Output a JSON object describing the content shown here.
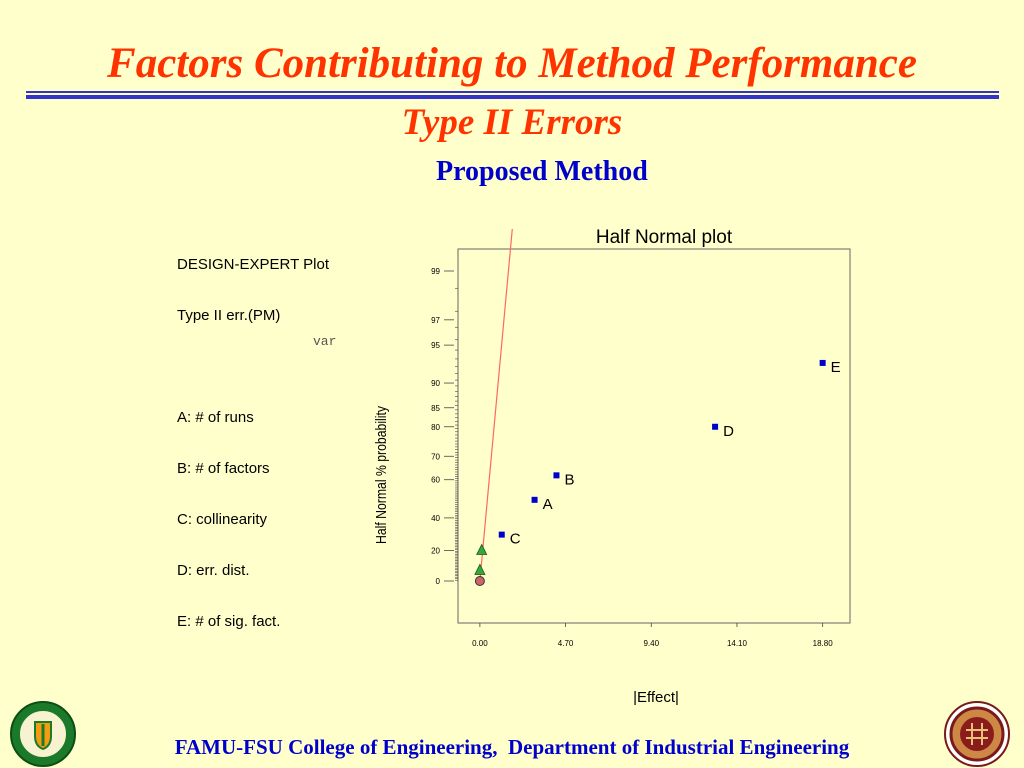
{
  "slide": {
    "title": "Factors Contributing to Method Performance",
    "subtitle": "Type II Errors",
    "section": "Proposed Method",
    "footer": "FAMU-FSU College of Engineering,  Department of Industrial Engineering",
    "var_label": "var",
    "logos": {
      "left": {
        "name": "FAMU seal",
        "text": "FLORIDA A&M UNIVERSITY 1887"
      },
      "right": {
        "name": "FSU seal",
        "text": "FLORIDA STATE UNIVERSITY 1851"
      }
    }
  },
  "design_info": {
    "lines": [
      "DESIGN-EXPERT Plot",
      "Type II err.(PM)",
      "",
      "A: # of runs",
      "B: # of factors",
      "C: collinearity",
      "D: err. dist.",
      "E: # of sig. fact."
    ]
  },
  "colors": {
    "background": "#ffffcc",
    "title": "#ff3300",
    "accent": "#0000cc",
    "rule": "#3333cc",
    "fit_line": "#ff6666",
    "effect_marker": "#0000cc",
    "error_triangle": "#33aa33",
    "error_circle": "#cc6666"
  },
  "chart_data": {
    "type": "scatter",
    "title": "Half Normal plot",
    "xlabel": "|Effect|",
    "ylabel": "Half Normal % probability",
    "x_ticks": [
      0.0,
      4.7,
      9.4,
      14.1,
      18.8
    ],
    "x_tick_labels": [
      "0.00",
      "4.70",
      "9.40",
      "14.10",
      "18.80"
    ],
    "xlim": [
      -1.2,
      20.3
    ],
    "y_scale": "half-normal probability",
    "y_ticks": [
      0,
      20,
      40,
      60,
      70,
      80,
      85,
      90,
      95,
      97,
      99
    ],
    "grid": false,
    "effects": [
      {
        "label": "C",
        "x": 1.2,
        "y": 30
      },
      {
        "label": "A",
        "x": 3.0,
        "y": 50
      },
      {
        "label": "B",
        "x": 4.2,
        "y": 62
      },
      {
        "label": "D",
        "x": 12.9,
        "y": 80
      },
      {
        "label": "E",
        "x": 18.8,
        "y": 93
      }
    ],
    "error_terms": [
      {
        "marker": "circle",
        "x": 0.0,
        "y": 0
      },
      {
        "marker": "triangle",
        "x": 0.0,
        "y": 7
      },
      {
        "marker": "triangle",
        "x": 0.1,
        "y": 20
      }
    ],
    "fit_line": {
      "x0": 0.0,
      "y0": 0,
      "x1": 2.0,
      "y1": 99.9
    }
  }
}
